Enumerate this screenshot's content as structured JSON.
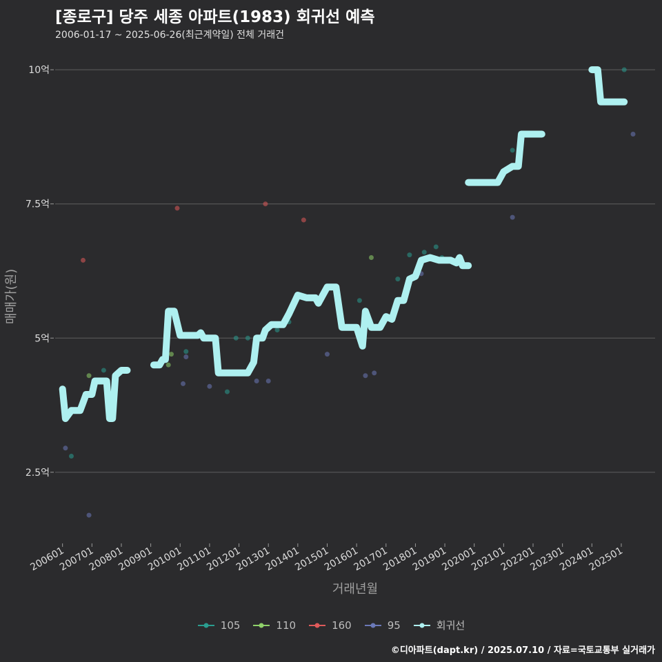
{
  "header": {
    "title": "[종로구] 당주 세종 아파트(1983) 회귀선 예측",
    "subtitle": "2006-01-17 ~ 2025-06-26(최근계약일) 전체 거래건"
  },
  "footer": {
    "caption": "©디아파트(dapt.kr) / 2025.07.10 / 자료=국토교통부 실거래가"
  },
  "colors": {
    "background": "#2b2b2d",
    "grid": "#5f5f5f",
    "s105": "#2a9d8f",
    "s110": "#8fd16a",
    "s160": "#e05a5a",
    "s95": "#6b79b8",
    "regression": "#aef0f0"
  },
  "chart_data": {
    "type": "scatter",
    "title": "[종로구] 당주 세종 아파트(1983) 회귀선 예측",
    "xlabel": "거래년월",
    "ylabel": "매매가(원)",
    "ylim": [
      1.2,
      10.4
    ],
    "xlim": [
      2005.75,
      2026.15
    ],
    "yticks": [
      2.5,
      5,
      7.5,
      10
    ],
    "ytick_labels": [
      "2.5억",
      "5억",
      "7.5억",
      "10억"
    ],
    "xticks": [
      2006,
      2007,
      2008,
      2009,
      2010,
      2011,
      2012,
      2013,
      2014,
      2015,
      2016,
      2017,
      2018,
      2019,
      2020,
      2021,
      2022,
      2023,
      2024,
      2025
    ],
    "xtick_labels": [
      "200601",
      "200701",
      "200801",
      "200901",
      "201001",
      "201101",
      "201201",
      "201301",
      "201401",
      "201501",
      "201601",
      "201701",
      "201801",
      "201901",
      "202001",
      "202101",
      "202201",
      "202301",
      "202401",
      "202501"
    ],
    "legend": [
      "105",
      "110",
      "160",
      "95",
      "회귀선"
    ],
    "series": [
      {
        "name": "105",
        "points": [
          [
            2006.3,
            2.8
          ],
          [
            2007.4,
            4.4
          ],
          [
            2010.2,
            4.75
          ],
          [
            2011.6,
            4.0
          ],
          [
            2011.9,
            5.0
          ],
          [
            2012.3,
            5.0
          ],
          [
            2013.3,
            5.15
          ],
          [
            2013.7,
            5.3
          ],
          [
            2016.1,
            5.7
          ],
          [
            2017.4,
            6.1
          ],
          [
            2017.8,
            6.55
          ],
          [
            2018.3,
            6.6
          ],
          [
            2018.7,
            6.7
          ],
          [
            2018.9,
            6.5
          ],
          [
            2021.3,
            8.5
          ],
          [
            2025.1,
            10.0
          ]
        ]
      },
      {
        "name": "110",
        "points": [
          [
            2006.9,
            4.3
          ],
          [
            2009.6,
            4.5
          ],
          [
            2009.7,
            4.7
          ],
          [
            2016.5,
            6.5
          ]
        ]
      },
      {
        "name": "160",
        "points": [
          [
            2006.7,
            6.45
          ],
          [
            2009.9,
            7.42
          ],
          [
            2012.9,
            7.5
          ],
          [
            2014.2,
            7.2
          ]
        ]
      },
      {
        "name": "95",
        "points": [
          [
            2006.1,
            2.95
          ],
          [
            2006.9,
            1.7
          ],
          [
            2010.1,
            4.15
          ],
          [
            2010.2,
            4.65
          ],
          [
            2011.0,
            4.1
          ],
          [
            2012.6,
            4.2
          ],
          [
            2012.8,
            5.0
          ],
          [
            2013.0,
            4.2
          ],
          [
            2015.0,
            4.7
          ],
          [
            2016.3,
            4.3
          ],
          [
            2016.6,
            4.35
          ],
          [
            2018.2,
            6.2
          ],
          [
            2021.3,
            7.25
          ],
          [
            2025.4,
            8.8
          ]
        ]
      },
      {
        "name": "회귀선",
        "segments": [
          [
            [
              2006.0,
              4.05
            ],
            [
              2006.1,
              3.5
            ],
            [
              2006.3,
              3.65
            ],
            [
              2006.6,
              3.65
            ],
            [
              2006.7,
              3.8
            ],
            [
              2006.8,
              3.95
            ],
            [
              2007.0,
              3.95
            ],
            [
              2007.1,
              4.2
            ],
            [
              2007.3,
              4.2
            ],
            [
              2007.5,
              4.2
            ],
            [
              2007.6,
              3.5
            ],
            [
              2007.7,
              3.5
            ],
            [
              2007.8,
              4.3
            ],
            [
              2008.0,
              4.4
            ],
            [
              2008.2,
              4.4
            ]
          ],
          [
            [
              2009.1,
              4.5
            ],
            [
              2009.3,
              4.5
            ],
            [
              2009.4,
              4.6
            ],
            [
              2009.5,
              4.6
            ],
            [
              2009.6,
              5.5
            ],
            [
              2009.8,
              5.5
            ],
            [
              2010.0,
              5.05
            ],
            [
              2010.2,
              5.05
            ],
            [
              2010.6,
              5.05
            ],
            [
              2010.7,
              5.1
            ],
            [
              2010.8,
              5.0
            ],
            [
              2011.0,
              5.0
            ],
            [
              2011.2,
              5.0
            ],
            [
              2011.3,
              4.35
            ],
            [
              2011.5,
              4.35
            ],
            [
              2012.0,
              4.35
            ],
            [
              2012.3,
              4.35
            ],
            [
              2012.5,
              4.55
            ],
            [
              2012.6,
              5.0
            ],
            [
              2012.8,
              5.0
            ],
            [
              2012.9,
              5.15
            ],
            [
              2013.1,
              5.25
            ],
            [
              2013.5,
              5.25
            ],
            [
              2013.7,
              5.45
            ],
            [
              2014.0,
              5.8
            ],
            [
              2014.3,
              5.75
            ],
            [
              2014.6,
              5.75
            ],
            [
              2014.7,
              5.65
            ],
            [
              2015.0,
              5.95
            ],
            [
              2015.3,
              5.95
            ],
            [
              2015.5,
              5.2
            ],
            [
              2015.8,
              5.2
            ],
            [
              2016.0,
              5.2
            ],
            [
              2016.2,
              4.85
            ],
            [
              2016.3,
              5.5
            ],
            [
              2016.5,
              5.2
            ],
            [
              2016.8,
              5.2
            ],
            [
              2017.0,
              5.4
            ],
            [
              2017.2,
              5.35
            ],
            [
              2017.4,
              5.7
            ],
            [
              2017.6,
              5.7
            ],
            [
              2017.8,
              6.1
            ],
            [
              2018.0,
              6.15
            ],
            [
              2018.2,
              6.45
            ],
            [
              2018.5,
              6.5
            ],
            [
              2018.8,
              6.45
            ],
            [
              2019.2,
              6.45
            ],
            [
              2019.4,
              6.4
            ],
            [
              2019.5,
              6.5
            ],
            [
              2019.6,
              6.35
            ],
            [
              2019.8,
              6.35
            ]
          ],
          [
            [
              2019.8,
              7.9
            ],
            [
              2020.1,
              7.9
            ],
            [
              2020.5,
              7.9
            ],
            [
              2020.8,
              7.9
            ],
            [
              2021.0,
              8.1
            ],
            [
              2021.3,
              8.2
            ],
            [
              2021.5,
              8.2
            ],
            [
              2021.6,
              8.8
            ],
            [
              2021.9,
              8.8
            ],
            [
              2022.3,
              8.8
            ]
          ],
          [
            [
              2024.0,
              10.0
            ],
            [
              2024.2,
              10.0
            ],
            [
              2024.3,
              9.4
            ],
            [
              2024.6,
              9.4
            ],
            [
              2024.8,
              9.4
            ],
            [
              2025.1,
              9.4
            ]
          ]
        ]
      }
    ]
  }
}
